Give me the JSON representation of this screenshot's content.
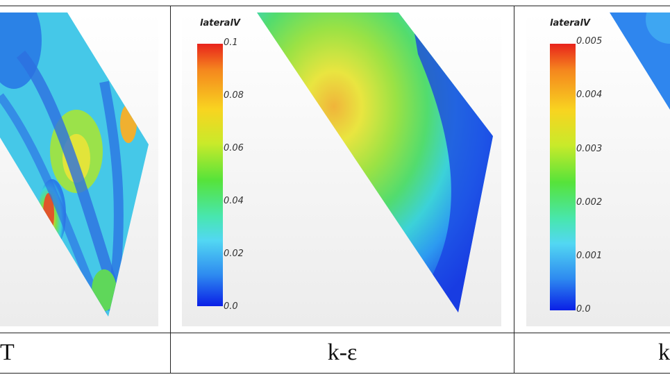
{
  "captions": {
    "col1": "T",
    "col2": "k-ε",
    "col3": "k"
  },
  "legend_middle": {
    "title": "lateralV",
    "ticks": [
      "0.1",
      "0.08",
      "0.06",
      "0.04",
      "0.02",
      "0.0"
    ]
  },
  "legend_right": {
    "title": "lateralV",
    "ticks": [
      "0.005",
      "0.004",
      "0.003",
      "0.002",
      "0.001",
      "0.0"
    ]
  },
  "colormap": [
    "#e8231c",
    "#f5871e",
    "#f8d420",
    "#c9ea2a",
    "#56e33a",
    "#48e6b0",
    "#52d7f3",
    "#2e8bf0",
    "#0a1fe6"
  ]
}
